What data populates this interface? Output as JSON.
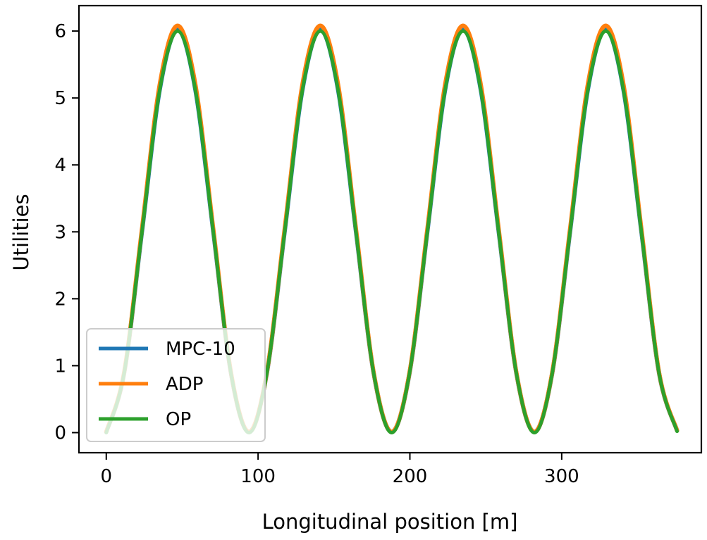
{
  "chart_data": {
    "type": "line",
    "title": "",
    "xlabel": "Longitudinal position [m]",
    "ylabel": "Utilities",
    "xlim": [
      -18,
      392
    ],
    "ylim": [
      -0.3,
      6.38
    ],
    "xticks": [
      0,
      100,
      200,
      300
    ],
    "yticks": [
      0,
      1,
      2,
      3,
      4,
      5,
      6
    ],
    "xtick_labels": [
      "0",
      "100",
      "200",
      "300"
    ],
    "ytick_labels": [
      "0",
      "1",
      "2",
      "3",
      "4",
      "5",
      "6"
    ],
    "grid": false,
    "legend_position": "lower-left",
    "x": [
      0,
      11.7,
      23.5,
      35.2,
      47,
      58.7,
      70.5,
      82.2,
      94,
      105.7,
      117.5,
      129.2,
      141,
      152.7,
      164.5,
      176.2,
      188,
      199.7,
      211.5,
      223.2,
      235,
      246.7,
      258.5,
      270.2,
      282,
      293.7,
      305.5,
      317.2,
      329,
      340.7,
      352.5,
      364.2,
      376
    ],
    "series": [
      {
        "name": "MPC-10",
        "color": "#1f77b4",
        "values": [
          0.01,
          0.88,
          3.0,
          5.12,
          6.02,
          5.12,
          3.0,
          0.88,
          0.01,
          0.88,
          3.0,
          5.12,
          6.02,
          5.12,
          3.0,
          0.88,
          0.01,
          0.88,
          3.0,
          5.12,
          6.02,
          5.12,
          3.0,
          0.88,
          0.01,
          0.88,
          3.0,
          5.12,
          6.02,
          5.12,
          3.0,
          0.88,
          0.03
        ]
      },
      {
        "name": "ADP",
        "color": "#ff7f0e",
        "values": [
          0.01,
          0.89,
          3.04,
          5.2,
          6.08,
          5.2,
          3.04,
          0.89,
          0.01,
          0.89,
          3.04,
          5.2,
          6.08,
          5.2,
          3.04,
          0.89,
          0.01,
          0.89,
          3.04,
          5.2,
          6.08,
          5.2,
          3.04,
          0.89,
          0.01,
          0.89,
          3.04,
          5.2,
          6.08,
          5.2,
          3.04,
          0.89,
          0.03
        ]
      },
      {
        "name": "OP",
        "color": "#2ca02c",
        "values": [
          0.0,
          0.88,
          3.0,
          5.12,
          6.0,
          5.12,
          3.0,
          0.88,
          0.0,
          0.88,
          3.0,
          5.12,
          6.0,
          5.12,
          3.0,
          0.88,
          0.0,
          0.88,
          3.0,
          5.12,
          6.0,
          5.12,
          3.0,
          0.88,
          0.0,
          0.88,
          3.0,
          5.12,
          6.0,
          5.12,
          3.0,
          0.88,
          0.02
        ]
      }
    ]
  }
}
